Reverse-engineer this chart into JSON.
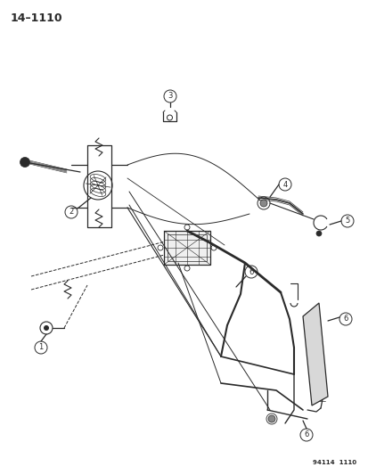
{
  "title": "14–1110",
  "footnote": "94114  1110",
  "bg_color": "#ffffff",
  "line_color": "#2a2a2a",
  "title_fontsize": 9,
  "footnote_fontsize": 5,
  "callout_r": 7,
  "callout_fontsize": 6
}
